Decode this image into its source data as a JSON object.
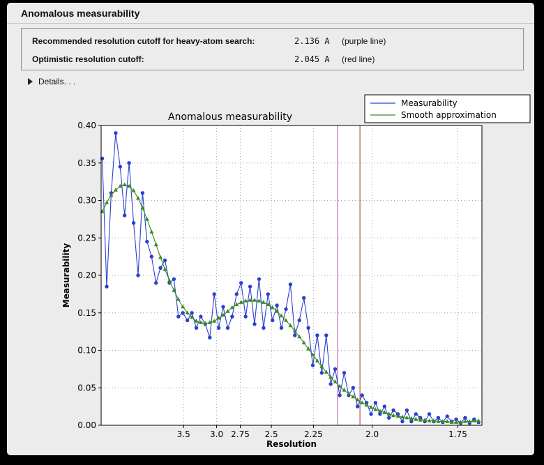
{
  "panel": {
    "title": "Anomalous measurability"
  },
  "info": {
    "rows": [
      {
        "label": "Recommended resolution cutoff for heavy-atom search:",
        "value": "2.136 A",
        "note": "(purple line)"
      },
      {
        "label": "Optimistic resolution cutoff:",
        "value": "2.045 A",
        "note": "(red line)"
      }
    ]
  },
  "details": {
    "label": "Details. . ."
  },
  "chart_data": {
    "type": "line",
    "title": "Anomalous measurability",
    "xlabel": "Resolution",
    "ylabel": "Measurability",
    "x_axis": {
      "scale": "1_over_d_squared",
      "s2_min": 0.008,
      "s2_max": 0.348,
      "ticks": [
        {
          "d": 3.5,
          "label": "3.5"
        },
        {
          "d": 3.0,
          "label": "3.0"
        },
        {
          "d": 2.75,
          "label": "2.75"
        },
        {
          "d": 2.5,
          "label": "2.5"
        },
        {
          "d": 2.25,
          "label": "2.25"
        },
        {
          "d": 2.0,
          "label": "2.0"
        },
        {
          "d": 1.75,
          "label": "1.75"
        }
      ]
    },
    "y_axis": {
      "min": 0.0,
      "max": 0.4,
      "ticks": [
        0.0,
        0.05,
        0.1,
        0.15,
        0.2,
        0.25,
        0.3,
        0.35,
        0.4
      ]
    },
    "series": [
      {
        "name": "Measurability",
        "color": "#2940cf",
        "marker": "circle",
        "s2_start": 0.009,
        "s2_step": 0.004,
        "values": [
          0.356,
          0.185,
          0.31,
          0.39,
          0.345,
          0.28,
          0.35,
          0.27,
          0.2,
          0.31,
          0.245,
          0.225,
          0.19,
          0.21,
          0.22,
          0.19,
          0.195,
          0.145,
          0.15,
          0.14,
          0.15,
          0.13,
          0.145,
          0.135,
          0.117,
          0.175,
          0.13,
          0.158,
          0.13,
          0.145,
          0.175,
          0.19,
          0.145,
          0.185,
          0.135,
          0.195,
          0.13,
          0.175,
          0.14,
          0.16,
          0.13,
          0.155,
          0.188,
          0.12,
          0.14,
          0.17,
          0.13,
          0.08,
          0.12,
          0.07,
          0.12,
          0.055,
          0.075,
          0.04,
          0.07,
          0.04,
          0.05,
          0.025,
          0.04,
          0.03,
          0.015,
          0.03,
          0.015,
          0.025,
          0.01,
          0.02,
          0.015,
          0.005,
          0.02,
          0.005,
          0.015,
          0.01,
          0.005,
          0.015,
          0.005,
          0.01,
          0.004,
          0.012,
          0.005,
          0.008,
          0.003,
          0.01,
          0.003,
          0.008,
          0.004
        ]
      },
      {
        "name": "Smooth approximation",
        "color": "#3a8a20",
        "marker": "triangle",
        "s2_start": 0.009,
        "s2_step": 0.004,
        "values": [
          0.285,
          0.297,
          0.307,
          0.314,
          0.319,
          0.321,
          0.319,
          0.313,
          0.303,
          0.29,
          0.275,
          0.258,
          0.241,
          0.224,
          0.208,
          0.193,
          0.18,
          0.168,
          0.158,
          0.15,
          0.144,
          0.139,
          0.137,
          0.136,
          0.137,
          0.139,
          0.143,
          0.147,
          0.152,
          0.157,
          0.161,
          0.164,
          0.166,
          0.167,
          0.167,
          0.166,
          0.164,
          0.161,
          0.157,
          0.152,
          0.146,
          0.14,
          0.133,
          0.126,
          0.118,
          0.11,
          0.102,
          0.094,
          0.086,
          0.078,
          0.071,
          0.064,
          0.058,
          0.052,
          0.047,
          0.042,
          0.038,
          0.034,
          0.03,
          0.027,
          0.024,
          0.021,
          0.019,
          0.017,
          0.015,
          0.013,
          0.012,
          0.011,
          0.01,
          0.009,
          0.008,
          0.007,
          0.007,
          0.006,
          0.006,
          0.005,
          0.005,
          0.005,
          0.004,
          0.004,
          0.004,
          0.005,
          0.005,
          0.006,
          0.006
        ]
      }
    ],
    "vlines": [
      {
        "label": "purple line",
        "d": 2.136,
        "color": "#a855a8"
      },
      {
        "label": "red line",
        "d": 2.045,
        "color": "#a03528"
      }
    ],
    "legend": {
      "position": "top-right",
      "entries": [
        "Measurability",
        "Smooth approximation"
      ]
    }
  }
}
